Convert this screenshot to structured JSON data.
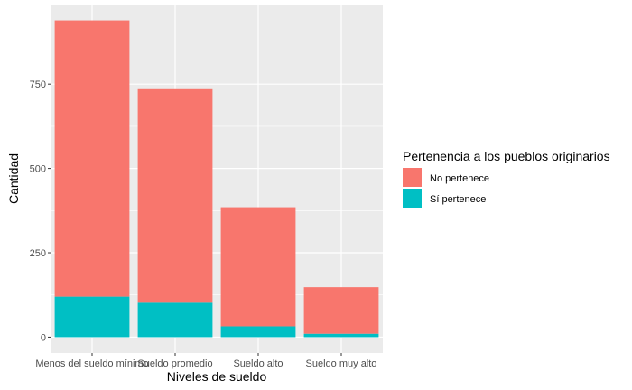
{
  "chart_data": {
    "type": "bar",
    "stacked": true,
    "categories": [
      "Menos del sueldo mínimo",
      "Sueldo promedio",
      "Sueldo alto",
      "Sueldo muy alto"
    ],
    "series": [
      {
        "name": "No pertenece",
        "values": [
          819,
          633,
          353,
          138
        ],
        "color": "#F8766D"
      },
      {
        "name": "Sí pertenece",
        "values": [
          120,
          102,
          32,
          10
        ],
        "color": "#00BFC4"
      }
    ],
    "xlabel": "Niveles de sueldo",
    "ylabel": "Cantidad",
    "ylim": [
      -47,
      986
    ],
    "yticks": [
      0,
      250,
      500,
      750
    ],
    "legend": {
      "title": "Pertenencia a los pueblos originarios",
      "position": "right"
    },
    "grid": true,
    "panel_background": "#EBEBEB"
  }
}
